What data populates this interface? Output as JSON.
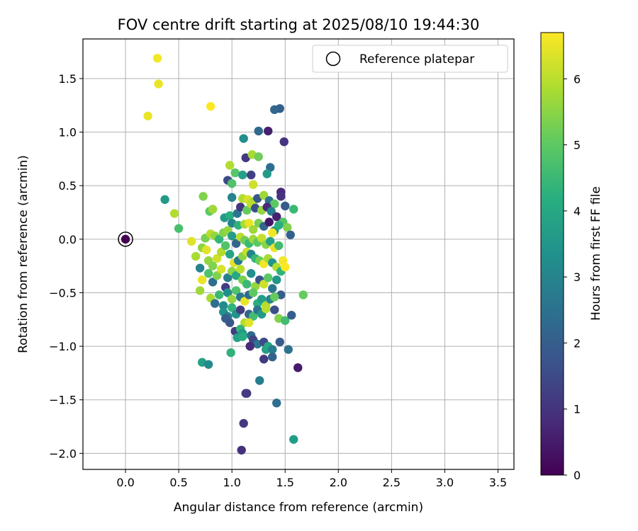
{
  "chart_data": {
    "type": "scatter",
    "title": "FOV centre drift starting at 2025/08/10 19:44:30",
    "xlabel": "Angular distance from reference (arcmin)",
    "ylabel": "Rotation from reference (arcmin)",
    "xlim": [
      -0.4,
      3.65
    ],
    "ylim": [
      -2.15,
      1.87
    ],
    "x_ticks": [
      "0.0",
      "0.5",
      "1.0",
      "1.5",
      "2.0",
      "2.5",
      "3.0",
      "3.5"
    ],
    "y_ticks": [
      "1.5",
      "1.0",
      "0.5",
      "0.0",
      "−0.5",
      "−1.0",
      "−1.5",
      "−2.0"
    ],
    "grid": true,
    "legend": {
      "position": "top-right",
      "entries": [
        "Reference platepar"
      ]
    },
    "colorbar": {
      "label": "Hours from first FF file",
      "range": [
        0,
        6.7
      ],
      "ticks": [
        "0",
        "1",
        "2",
        "3",
        "4",
        "5",
        "6"
      ],
      "colormap": "viridis"
    },
    "reference_point": {
      "x": 0.0,
      "y": 0.0,
      "hours": 0.0
    },
    "points": [
      [
        0.3,
        1.69,
        6.6
      ],
      [
        0.31,
        1.45,
        6.5
      ],
      [
        0.21,
        1.15,
        6.5
      ],
      [
        0.8,
        1.24,
        6.7
      ],
      [
        1.45,
        1.22,
        2.0
      ],
      [
        1.4,
        1.21,
        2.2
      ],
      [
        1.25,
        1.01,
        2.3
      ],
      [
        1.34,
        1.01,
        0.6
      ],
      [
        1.49,
        0.91,
        1.0
      ],
      [
        1.11,
        0.94,
        3.3
      ],
      [
        1.13,
        0.76,
        1.1
      ],
      [
        1.19,
        0.79,
        5.8
      ],
      [
        1.25,
        0.77,
        5.2
      ],
      [
        0.98,
        0.69,
        5.9
      ],
      [
        1.36,
        0.67,
        2.4
      ],
      [
        1.03,
        0.62,
        4.9
      ],
      [
        1.1,
        0.6,
        3.8
      ],
      [
        1.18,
        0.6,
        1.3
      ],
      [
        1.33,
        0.61,
        3.6
      ],
      [
        1.2,
        0.51,
        6.2
      ],
      [
        0.96,
        0.55,
        1.5
      ],
      [
        1.0,
        0.52,
        4.8
      ],
      [
        0.37,
        0.37,
        3.6
      ],
      [
        0.73,
        0.4,
        5.4
      ],
      [
        1.46,
        0.44,
        0.8
      ],
      [
        1.46,
        0.4,
        1.0
      ],
      [
        1.0,
        0.39,
        3.0
      ],
      [
        1.1,
        0.38,
        5.9
      ],
      [
        1.15,
        0.37,
        6.3
      ],
      [
        1.2,
        0.35,
        5.6
      ],
      [
        1.24,
        0.38,
        1.8
      ],
      [
        1.3,
        0.41,
        5.7
      ],
      [
        1.35,
        0.36,
        2.5
      ],
      [
        1.4,
        0.33,
        5.0
      ],
      [
        1.5,
        0.31,
        1.9
      ],
      [
        1.58,
        0.28,
        4.5
      ],
      [
        0.46,
        0.24,
        5.9
      ],
      [
        0.79,
        0.26,
        5.0
      ],
      [
        0.82,
        0.28,
        5.7
      ],
      [
        0.93,
        0.2,
        3.6
      ],
      [
        0.98,
        0.22,
        4.2
      ],
      [
        1.05,
        0.24,
        2.6
      ],
      [
        1.08,
        0.3,
        1.0
      ],
      [
        1.14,
        0.27,
        5.1
      ],
      [
        1.18,
        0.33,
        6.0
      ],
      [
        1.22,
        0.29,
        1.6
      ],
      [
        1.28,
        0.27,
        5.6
      ],
      [
        1.33,
        0.3,
        0.8
      ],
      [
        1.37,
        0.26,
        2.9
      ],
      [
        1.42,
        0.21,
        0.6
      ],
      [
        1.48,
        0.16,
        4.9
      ],
      [
        1.52,
        0.11,
        5.4
      ],
      [
        1.55,
        0.04,
        2.1
      ],
      [
        0.5,
        0.1,
        4.7
      ],
      [
        1.0,
        0.15,
        3.0
      ],
      [
        1.06,
        0.13,
        4.3
      ],
      [
        1.12,
        0.14,
        5.8
      ],
      [
        1.16,
        0.15,
        6.5
      ],
      [
        1.2,
        0.09,
        5.7
      ],
      [
        1.25,
        0.15,
        5.3
      ],
      [
        1.3,
        0.12,
        2.2
      ],
      [
        1.35,
        0.16,
        0.4
      ],
      [
        1.4,
        0.08,
        3.4
      ],
      [
        1.44,
        0.13,
        4.2
      ],
      [
        1.38,
        0.06,
        6.6
      ],
      [
        0.62,
        -0.02,
        6.4
      ],
      [
        0.66,
        -0.16,
        5.8
      ],
      [
        0.72,
        -0.08,
        5.5
      ],
      [
        0.75,
        0.01,
        5.3
      ],
      [
        0.8,
        0.05,
        6.0
      ],
      [
        0.84,
        0.03,
        5.6
      ],
      [
        0.88,
        0.0,
        4.4
      ],
      [
        0.92,
        0.06,
        5.4
      ],
      [
        0.96,
        0.08,
        5.6
      ],
      [
        1.0,
        0.03,
        3.7
      ],
      [
        1.04,
        -0.04,
        2.2
      ],
      [
        1.08,
        0.02,
        6.0
      ],
      [
        1.12,
        -0.01,
        5.2
      ],
      [
        1.16,
        -0.04,
        4.5
      ],
      [
        1.2,
        0.0,
        5.7
      ],
      [
        1.24,
        -0.03,
        5.0
      ],
      [
        1.28,
        0.01,
        6.1
      ],
      [
        1.32,
        -0.05,
        5.5
      ],
      [
        1.36,
        -0.02,
        3.8
      ],
      [
        1.4,
        -0.08,
        6.5
      ],
      [
        1.44,
        -0.06,
        4.6
      ],
      [
        0.7,
        -0.27,
        3.0
      ],
      [
        0.76,
        -0.1,
        6.4
      ],
      [
        0.78,
        -0.2,
        5.6
      ],
      [
        0.82,
        -0.25,
        5.4
      ],
      [
        0.86,
        -0.18,
        6.2
      ],
      [
        0.9,
        -0.12,
        5.9
      ],
      [
        0.94,
        -0.06,
        4.8
      ],
      [
        0.98,
        -0.14,
        3.9
      ],
      [
        1.02,
        -0.22,
        6.4
      ],
      [
        1.06,
        -0.2,
        2.7
      ],
      [
        1.1,
        -0.16,
        5.5
      ],
      [
        1.14,
        -0.12,
        6.1
      ],
      [
        1.18,
        -0.14,
        3.0
      ],
      [
        1.22,
        -0.18,
        4.4
      ],
      [
        1.26,
        -0.2,
        5.2
      ],
      [
        1.3,
        -0.23,
        6.6
      ],
      [
        1.34,
        -0.18,
        5.8
      ],
      [
        1.38,
        -0.22,
        3.5
      ],
      [
        1.42,
        -0.26,
        5.9
      ],
      [
        1.46,
        -0.3,
        4.3
      ],
      [
        1.48,
        -0.2,
        6.6
      ],
      [
        1.5,
        -0.26,
        6.7
      ],
      [
        0.72,
        -0.38,
        6.5
      ],
      [
        0.7,
        -0.48,
        5.7
      ],
      [
        0.78,
        -0.32,
        4.8
      ],
      [
        0.82,
        -0.4,
        2.4
      ],
      [
        0.86,
        -0.34,
        5.4
      ],
      [
        0.9,
        -0.28,
        6.3
      ],
      [
        0.94,
        -0.45,
        1.2
      ],
      [
        0.96,
        -0.36,
        2.9
      ],
      [
        1.0,
        -0.3,
        5.5
      ],
      [
        1.04,
        -0.34,
        4.0
      ],
      [
        1.08,
        -0.28,
        6.0
      ],
      [
        1.1,
        -0.38,
        5.3
      ],
      [
        1.14,
        -0.42,
        4.5
      ],
      [
        1.18,
        -0.32,
        3.3
      ],
      [
        1.22,
        -0.44,
        5.6
      ],
      [
        1.26,
        -0.38,
        1.7
      ],
      [
        1.3,
        -0.42,
        6.2
      ],
      [
        1.34,
        -0.36,
        5.0
      ],
      [
        1.38,
        -0.46,
        2.6
      ],
      [
        1.42,
        -0.38,
        3.5
      ],
      [
        1.46,
        -0.52,
        2.0
      ],
      [
        0.8,
        -0.55,
        5.8
      ],
      [
        0.84,
        -0.6,
        2.4
      ],
      [
        0.88,
        -0.52,
        4.5
      ],
      [
        0.92,
        -0.62,
        3.2
      ],
      [
        0.96,
        -0.5,
        3.3
      ],
      [
        1.0,
        -0.56,
        5.6
      ],
      [
        1.04,
        -0.48,
        4.8
      ],
      [
        1.08,
        -0.54,
        2.7
      ],
      [
        1.12,
        -0.58,
        6.5
      ],
      [
        1.16,
        -0.52,
        2.3
      ],
      [
        1.2,
        -0.5,
        5.0
      ],
      [
        1.24,
        -0.6,
        4.2
      ],
      [
        1.28,
        -0.56,
        3.7
      ],
      [
        1.32,
        -0.62,
        5.9
      ],
      [
        1.36,
        -0.56,
        3.0
      ],
      [
        1.4,
        -0.54,
        5.1
      ],
      [
        1.44,
        -0.74,
        5.4
      ],
      [
        1.5,
        -0.76,
        4.6
      ],
      [
        1.56,
        -0.71,
        2.0
      ],
      [
        1.67,
        -0.52,
        5.1
      ],
      [
        0.92,
        -0.68,
        3.4
      ],
      [
        0.96,
        -0.72,
        2.9
      ],
      [
        1.0,
        -0.64,
        4.3
      ],
      [
        1.04,
        -0.7,
        3.4
      ],
      [
        1.08,
        -0.66,
        1.2
      ],
      [
        1.12,
        -0.78,
        5.9
      ],
      [
        1.16,
        -0.7,
        2.2
      ],
      [
        1.2,
        -0.72,
        4.6
      ],
      [
        1.24,
        -0.66,
        2.6
      ],
      [
        1.28,
        -0.7,
        3.6
      ],
      [
        1.32,
        -0.65,
        6.0
      ],
      [
        1.4,
        -0.66,
        1.6
      ],
      [
        0.94,
        -0.74,
        2.0
      ],
      [
        0.98,
        -0.78,
        1.8
      ],
      [
        1.03,
        -0.86,
        1.2
      ],
      [
        1.08,
        -0.84,
        4.4
      ],
      [
        1.1,
        -0.88,
        3.6
      ],
      [
        1.16,
        -0.78,
        6.4
      ],
      [
        1.18,
        -0.9,
        2.3
      ],
      [
        1.2,
        -0.94,
        1.4
      ],
      [
        1.05,
        -0.92,
        3.8
      ],
      [
        1.1,
        -0.91,
        4.1
      ],
      [
        1.24,
        -0.98,
        2.6
      ],
      [
        1.3,
        -0.96,
        1.5
      ],
      [
        1.32,
        -1.03,
        3.7
      ],
      [
        1.34,
        -1.0,
        4.0
      ],
      [
        1.38,
        -1.03,
        2.8
      ],
      [
        1.45,
        -0.96,
        1.9
      ],
      [
        1.53,
        -1.03,
        2.5
      ],
      [
        1.17,
        -1.0,
        0.8
      ],
      [
        0.99,
        -1.06,
        4.3
      ],
      [
        1.3,
        -1.12,
        1.1
      ],
      [
        1.38,
        -1.1,
        2.1
      ],
      [
        0.72,
        -1.15,
        3.8
      ],
      [
        0.78,
        -1.17,
        3.2
      ],
      [
        1.62,
        -1.2,
        0.5
      ],
      [
        1.26,
        -1.32,
        2.8
      ],
      [
        1.14,
        -1.44,
        1.0
      ],
      [
        1.13,
        -1.44,
        1.2
      ],
      [
        1.42,
        -1.53,
        2.4
      ],
      [
        1.11,
        -1.72,
        1.1
      ],
      [
        1.58,
        -1.87,
        3.7
      ],
      [
        1.09,
        -1.97,
        0.9
      ]
    ]
  }
}
